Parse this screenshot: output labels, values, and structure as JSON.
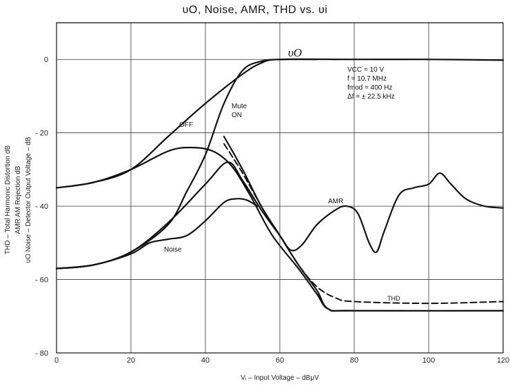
{
  "chart_data": {
    "type": "line",
    "title": "υO, Noise, AMR,  THD  vs.  υi",
    "xlabel": "Vᵢ – Input  Voltage – dBμV",
    "ylabel_lines": [
      "THD – Total Harmonic Distortion  dB",
      "AMR   AM Rejection   dB",
      "υO Noise – Detector Output Voltage – dB"
    ],
    "xlim": [
      0,
      120
    ],
    "ylim": [
      -80,
      10
    ],
    "x_ticks": [
      0,
      20,
      40,
      60,
      80,
      100,
      120
    ],
    "y_ticks": [
      0,
      -20,
      -40,
      -60,
      -80
    ],
    "x_tick_labels": [
      "0",
      "20",
      "40",
      "60",
      "80",
      "100",
      "120"
    ],
    "y_tick_labels": [
      "0",
      "- 20",
      "- 40",
      "- 60",
      "- 80"
    ],
    "grid": true,
    "conditions": [
      "VCC = 10  V",
      "f = 10.7  MHz",
      "fmod = 400  Hz",
      "Δf = ± 22.5  kHz"
    ],
    "annotations": [
      "υO",
      "OFF",
      "Mute",
      "ON",
      "AMR",
      "Noise",
      "THD"
    ],
    "series": [
      {
        "name": "υO",
        "dash": "solid",
        "points": [
          [
            0,
            -35
          ],
          [
            10,
            -33.5
          ],
          [
            20,
            -30
          ],
          [
            30,
            -21
          ],
          [
            40,
            -12
          ],
          [
            50,
            -4
          ],
          [
            55,
            -1
          ],
          [
            60,
            0
          ],
          [
            80,
            0
          ],
          [
            100,
            0
          ],
          [
            120,
            -0.2
          ]
        ]
      },
      {
        "name": "υO",
        "dash": "solid",
        "points": [
          [
            0,
            -57
          ],
          [
            10,
            -56
          ],
          [
            20,
            -52.5
          ],
          [
            30,
            -45
          ],
          [
            35,
            -36
          ],
          [
            40,
            -26
          ],
          [
            45,
            -12
          ],
          [
            50,
            -3
          ],
          [
            55,
            -0.5
          ],
          [
            60,
            0
          ],
          [
            70,
            0
          ]
        ]
      },
      {
        "name": "Noise",
        "dash": "solid",
        "points": [
          [
            0,
            -35
          ],
          [
            10,
            -33.5
          ],
          [
            20,
            -30
          ],
          [
            30,
            -25
          ],
          [
            36,
            -24
          ],
          [
            42,
            -25
          ],
          [
            47,
            -29
          ],
          [
            52,
            -37
          ],
          [
            58,
            -48
          ],
          [
            65,
            -57
          ],
          [
            70,
            -64
          ],
          [
            73,
            -68
          ],
          [
            80,
            -68.5
          ],
          [
            120,
            -68.5
          ]
        ]
      },
      {
        "name": "Noise",
        "dash": "solid",
        "points": [
          [
            0,
            -57
          ],
          [
            10,
            -56
          ],
          [
            20,
            -53
          ],
          [
            25,
            -50
          ],
          [
            30,
            -49
          ],
          [
            35,
            -48
          ],
          [
            40,
            -44
          ],
          [
            45,
            -39
          ],
          [
            48,
            -38
          ],
          [
            51,
            -38.3
          ],
          [
            54,
            -40
          ]
        ]
      },
      {
        "name": "AMR",
        "dash": "solid",
        "points": [
          [
            0,
            -57
          ],
          [
            10,
            -56
          ],
          [
            20,
            -52.5
          ],
          [
            30,
            -44.5
          ],
          [
            40,
            -34
          ],
          [
            46,
            -28
          ],
          [
            50,
            -33
          ],
          [
            55,
            -41
          ],
          [
            60,
            -48
          ],
          [
            63,
            -52
          ],
          [
            66,
            -50.5
          ],
          [
            70,
            -45
          ],
          [
            75,
            -41
          ],
          [
            78,
            -40
          ],
          [
            81,
            -42
          ],
          [
            84,
            -50
          ],
          [
            86,
            -52.5
          ],
          [
            88,
            -47
          ],
          [
            92,
            -37
          ],
          [
            96,
            -35
          ],
          [
            100,
            -34
          ],
          [
            103,
            -31
          ],
          [
            106,
            -34
          ],
          [
            110,
            -38
          ],
          [
            115,
            -40
          ],
          [
            120,
            -40.5
          ]
        ]
      },
      {
        "name": "THD",
        "dash": "solid",
        "points": [
          [
            45,
            -21
          ],
          [
            50,
            -30
          ],
          [
            55,
            -40
          ],
          [
            60,
            -48
          ],
          [
            65,
            -56
          ],
          [
            70,
            -63
          ],
          [
            73,
            -68
          ],
          [
            80,
            -68.5
          ],
          [
            120,
            -68.5
          ]
        ]
      },
      {
        "name": "THD",
        "dash": "dashed",
        "points": [
          [
            45,
            -23
          ],
          [
            50,
            -31
          ],
          [
            55,
            -40
          ],
          [
            60,
            -48
          ],
          [
            65,
            -56
          ],
          [
            70,
            -62
          ],
          [
            75,
            -65
          ],
          [
            80,
            -66
          ],
          [
            100,
            -66.5
          ],
          [
            120,
            -66
          ]
        ]
      }
    ]
  }
}
